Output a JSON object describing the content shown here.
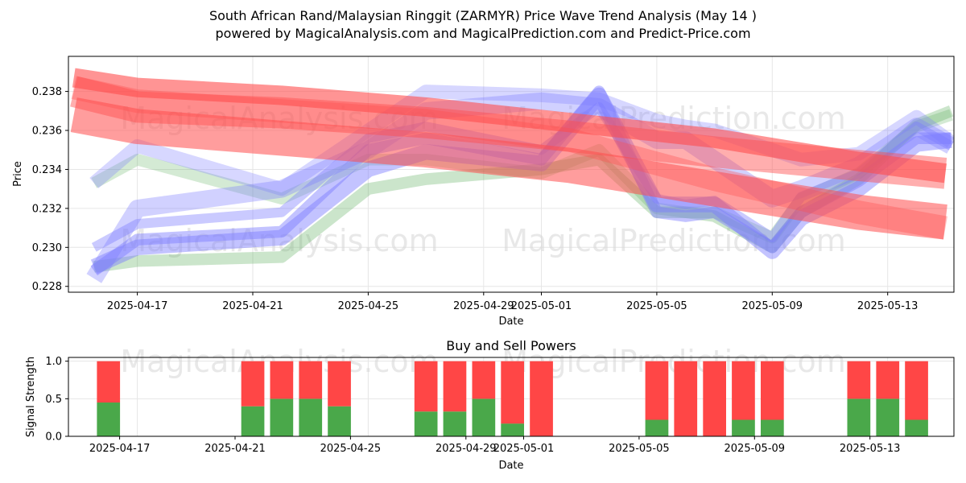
{
  "header": {
    "title_line1": "South African Rand/Malaysian Ringgit (ZARMYR) Price Wave Trend Analysis (May 14 )",
    "title_line2": "powered by MagicalAnalysis.com and MagicalPrediction.com and Predict-Price.com"
  },
  "watermarks": {
    "left": "MagicalAnalysis.com",
    "right": "MagicalPrediction.com"
  },
  "colors": {
    "red": "#ff4c4c",
    "blue": "#7b7bff",
    "green": "#52aa52",
    "sell_bar": "#ff4646",
    "buy_bar": "#4aa84a"
  },
  "chart_data": [
    {
      "type": "line",
      "subtype": "wave-bands",
      "title": "",
      "xlabel": "Date",
      "ylabel": "Price",
      "x_tick_labels": [
        "2025-04-17",
        "2025-04-21",
        "2025-04-25",
        "2025-04-29",
        "2025-05-01",
        "2025-05-05",
        "2025-05-09",
        "2025-05-13"
      ],
      "y_tick_labels": [
        "0.228",
        "0.230",
        "0.232",
        "0.234",
        "0.236",
        "0.238"
      ],
      "ylim": [
        0.2277,
        0.2398
      ],
      "x_range_days": [
        -1.6,
        28.4
      ],
      "grid": true,
      "red_bands": [
        {
          "x": [
            -2.2,
            0,
            5,
            10,
            15,
            20,
            25,
            28.0
          ],
          "y": [
            0.238,
            0.2372,
            0.2369,
            0.2364,
            0.2357,
            0.2349,
            0.2342,
            0.2338
          ],
          "width": 0.0016,
          "opacity": 0.45
        },
        {
          "x": [
            -2.2,
            0,
            5,
            10,
            15,
            20,
            25,
            28.0
          ],
          "y": [
            0.2387,
            0.2382,
            0.2378,
            0.2372,
            0.2364,
            0.2356,
            0.2344,
            0.2338
          ],
          "width": 0.001,
          "opacity": 0.6
        },
        {
          "x": [
            -2.2,
            0,
            5,
            10,
            15,
            20,
            25,
            28.0
          ],
          "y": [
            0.2368,
            0.2362,
            0.2356,
            0.235,
            0.2342,
            0.233,
            0.2318,
            0.2313
          ],
          "width": 0.0018,
          "opacity": 0.55
        },
        {
          "x": [
            -2.2,
            0,
            5,
            10,
            15,
            20,
            25,
            28.0
          ],
          "y": [
            0.2382,
            0.2375,
            0.237,
            0.2365,
            0.2355,
            0.2335,
            0.2318,
            0.231
          ],
          "width": 0.0012,
          "opacity": 0.35
        }
      ],
      "blue_bands": [
        {
          "x": [
            -1.5,
            0,
            5,
            8,
            10,
            14,
            16,
            18,
            19,
            20,
            22,
            23,
            25,
            27,
            28.2
          ],
          "y": [
            0.229,
            0.23,
            0.2305,
            0.234,
            0.2349,
            0.2343,
            0.2378,
            0.2322,
            0.2322,
            0.2322,
            0.2298,
            0.2315,
            0.233,
            0.2353,
            0.2355
          ],
          "width": 0.0008,
          "opacity": 0.45
        },
        {
          "x": [
            -1.5,
            0,
            5,
            8,
            10,
            14,
            16,
            18,
            19,
            20,
            22,
            23,
            25,
            27,
            28.2
          ],
          "y": [
            0.2284,
            0.232,
            0.233,
            0.235,
            0.237,
            0.2375,
            0.2372,
            0.2355,
            0.2355,
            0.2345,
            0.2325,
            0.233,
            0.2342,
            0.2362,
            0.2352
          ],
          "width": 0.0009,
          "opacity": 0.35
        },
        {
          "x": [
            -1.5,
            0,
            5,
            8,
            10,
            14,
            16,
            18,
            19,
            20,
            22,
            23,
            25,
            27,
            28.2
          ],
          "y": [
            0.2333,
            0.2352,
            0.233,
            0.236,
            0.238,
            0.2378,
            0.2376,
            0.2365,
            0.2362,
            0.236,
            0.235,
            0.2345,
            0.2348,
            0.2367,
            0.2354
          ],
          "width": 0.0007,
          "opacity": 0.3
        },
        {
          "x": [
            -1.5,
            0,
            5,
            8,
            10,
            14,
            16,
            18,
            19,
            20,
            22,
            23,
            25,
            27,
            28.2
          ],
          "y": [
            0.2288,
            0.2304,
            0.2308,
            0.235,
            0.2356,
            0.2345,
            0.238,
            0.2318,
            0.2316,
            0.2318,
            0.23,
            0.2318,
            0.2334,
            0.2356,
            0.2356
          ],
          "width": 0.0006,
          "opacity": 0.45
        },
        {
          "x": [
            -1.5,
            0,
            5,
            8,
            10,
            14,
            16,
            18,
            19,
            20,
            22,
            23,
            25,
            27,
            28.2
          ],
          "y": [
            0.23,
            0.2312,
            0.2318,
            0.2356,
            0.2362,
            0.235,
            0.2372,
            0.2325,
            0.2322,
            0.2324,
            0.2305,
            0.2326,
            0.2338,
            0.2362,
            0.2352
          ],
          "width": 0.0005,
          "opacity": 0.4
        }
      ],
      "green_bands": [
        {
          "x": [
            -1.5,
            0,
            5,
            8,
            10,
            14,
            16,
            18,
            19,
            20,
            22,
            23,
            25,
            27,
            28.2
          ],
          "y": [
            0.229,
            0.2293,
            0.2295,
            0.233,
            0.2335,
            0.234,
            0.2345,
            0.2318,
            0.2318,
            0.2316,
            0.23,
            0.2318,
            0.2335,
            0.2363,
            0.237
          ],
          "width": 0.0006,
          "opacity": 0.3
        },
        {
          "x": [
            -1.5,
            0,
            5,
            8,
            10,
            14,
            16,
            18,
            19,
            20,
            22,
            23,
            25,
            27,
            28.2
          ],
          "y": [
            0.2333,
            0.2345,
            0.2325,
            0.2345,
            0.2345,
            0.2338,
            0.235,
            0.232,
            0.2318,
            0.2318,
            0.2305,
            0.2325,
            0.2338,
            0.2362,
            0.2368
          ],
          "width": 0.0006,
          "opacity": 0.25
        }
      ]
    },
    {
      "type": "bar",
      "subtype": "stacked",
      "title": "Buy and Sell Powers",
      "xlabel": "Date",
      "ylabel": "Signal Strength",
      "x_tick_labels": [
        "2025-04-17",
        "2025-04-21",
        "2025-04-25",
        "2025-04-29",
        "2025-05-01",
        "2025-05-05",
        "2025-05-09",
        "2025-05-13"
      ],
      "y_tick_labels": [
        "0.0",
        "0.5",
        "1.0"
      ],
      "ylim": [
        0,
        1.05
      ],
      "grid": true,
      "bars": [
        {
          "date": "2025-04-16",
          "buy": 0.45,
          "sell": 0.55
        },
        {
          "date": "2025-04-21",
          "buy": 0.4,
          "sell": 0.6
        },
        {
          "date": "2025-04-22",
          "buy": 0.5,
          "sell": 0.5
        },
        {
          "date": "2025-04-23",
          "buy": 0.5,
          "sell": 0.5
        },
        {
          "date": "2025-04-24",
          "buy": 0.4,
          "sell": 0.6
        },
        {
          "date": "2025-04-27",
          "buy": 0.33,
          "sell": 0.67
        },
        {
          "date": "2025-04-28",
          "buy": 0.33,
          "sell": 0.67
        },
        {
          "date": "2025-04-29",
          "buy": 0.5,
          "sell": 0.5
        },
        {
          "date": "2025-04-30",
          "buy": 0.17,
          "sell": 0.83
        },
        {
          "date": "2025-05-01",
          "buy": 0.0,
          "sell": 1.0
        },
        {
          "date": "2025-05-05",
          "buy": 0.22,
          "sell": 0.78
        },
        {
          "date": "2025-05-06",
          "buy": 0.0,
          "sell": 1.0
        },
        {
          "date": "2025-05-07",
          "buy": 0.0,
          "sell": 1.0
        },
        {
          "date": "2025-05-08",
          "buy": 0.22,
          "sell": 0.78
        },
        {
          "date": "2025-05-09",
          "buy": 0.22,
          "sell": 0.78
        },
        {
          "date": "2025-05-12",
          "buy": 0.5,
          "sell": 0.5
        },
        {
          "date": "2025-05-13",
          "buy": 0.5,
          "sell": 0.5
        },
        {
          "date": "2025-05-14",
          "buy": 0.22,
          "sell": 0.78
        }
      ]
    }
  ]
}
